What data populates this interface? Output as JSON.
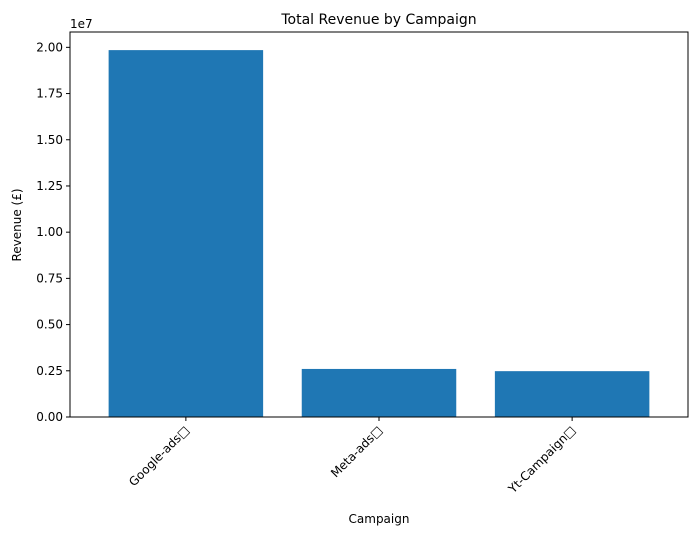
{
  "chart_data": {
    "type": "bar",
    "title": "Total Revenue by Campaign",
    "xlabel": "Campaign",
    "ylabel": "Revenue (£)",
    "y_offset_label": "1e7",
    "categories": [
      "Google-ads□",
      "Meta-ads□",
      "Yt-Campaign□"
    ],
    "values": [
      19850000,
      2600000,
      2480000
    ],
    "ylim": [
      0,
      20830000
    ],
    "yticks": [
      0,
      2500000,
      5000000,
      7500000,
      10000000,
      12500000,
      15000000,
      17500000,
      20000000
    ],
    "ytick_labels": [
      "0.00",
      "0.25",
      "0.50",
      "0.75",
      "1.00",
      "1.25",
      "1.50",
      "1.75",
      "2.00"
    ],
    "grid": false,
    "bar_color": "#1f77b4"
  }
}
